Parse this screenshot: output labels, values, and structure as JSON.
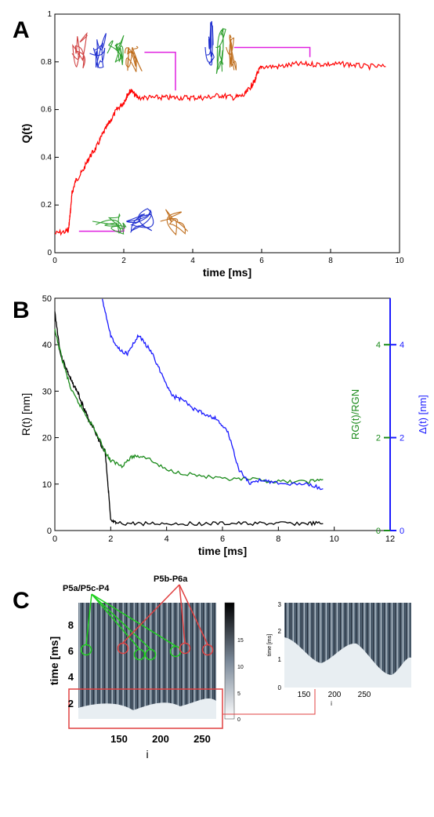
{
  "panels": {
    "a": "A",
    "b": "B",
    "c": "C"
  },
  "chart_data": [
    {
      "type": "line",
      "panel": "A",
      "xlabel": "time [ms]",
      "ylabel": "Q(t)",
      "xlim": [
        0,
        10
      ],
      "ylim": [
        0,
        1
      ],
      "xticks": [
        "0",
        "2",
        "4",
        "6",
        "8",
        "10"
      ],
      "yticks": [
        "0",
        "0.2",
        "0.4",
        "0.6",
        "0.8",
        "1"
      ],
      "color": "#ff0000",
      "series": [
        {
          "x": [
            0,
            0.35,
            0.4,
            0.45,
            0.5,
            0.6,
            0.8,
            1.0,
            1.2,
            1.4,
            1.6,
            1.8,
            2.0,
            2.1,
            2.2,
            2.4,
            2.8,
            3.2,
            3.6,
            4.0,
            4.4,
            4.8,
            5.2,
            5.5,
            5.7,
            5.8,
            5.9,
            6.0,
            6.5,
            7.0,
            7.5,
            8.0,
            8.5,
            9.0,
            9.6
          ],
          "y": [
            0.08,
            0.09,
            0.1,
            0.17,
            0.25,
            0.3,
            0.34,
            0.4,
            0.44,
            0.5,
            0.55,
            0.6,
            0.63,
            0.66,
            0.68,
            0.65,
            0.65,
            0.65,
            0.65,
            0.65,
            0.65,
            0.66,
            0.65,
            0.66,
            0.7,
            0.72,
            0.76,
            0.78,
            0.78,
            0.79,
            0.79,
            0.79,
            0.79,
            0.78,
            0.78
          ]
        }
      ]
    },
    {
      "type": "line",
      "panel": "B",
      "xlabel": "time [ms]",
      "ylabel": "R(t) [nm]",
      "ylabel_right_green": "RG(t)/RGN",
      "ylabel_right_blue": "Δ(t) [nm]",
      "xlim": [
        0,
        12
      ],
      "ylim": [
        0,
        50
      ],
      "xticks": [
        "0",
        "2",
        "4",
        "6",
        "8",
        "10",
        "12"
      ],
      "yticks": [
        "0",
        "10",
        "20",
        "30",
        "40",
        "50"
      ],
      "right_ticks_green": [
        "0",
        "2",
        "4"
      ],
      "right_ticks_blue": [
        "0",
        "2",
        "4"
      ],
      "series": [
        {
          "color": "#000000",
          "x": [
            0,
            0.2,
            0.4,
            0.6,
            0.8,
            1.0,
            1.2,
            1.4,
            1.6,
            1.8,
            1.9,
            2.0,
            2.2,
            3,
            4,
            5,
            6,
            7,
            8,
            9,
            9.6
          ],
          "y": [
            47,
            38,
            35,
            32,
            30,
            27,
            24,
            22,
            19,
            17,
            10,
            2,
            1.5,
            1.5,
            1.5,
            1.5,
            1.5,
            1.5,
            1.5,
            1.5,
            1.5
          ]
        },
        {
          "color": "#1a8a1a",
          "x": [
            0,
            0.3,
            0.6,
            1.0,
            1.4,
            1.8,
            2.0,
            2.4,
            2.8,
            3.2,
            4,
            5,
            6,
            7,
            8,
            9,
            9.6
          ],
          "y": [
            43,
            36,
            30,
            26,
            22,
            17,
            15,
            14,
            16,
            16,
            13,
            12,
            11,
            11,
            10.5,
            10.5,
            11
          ]
        },
        {
          "color": "#1a1aff",
          "x": [
            1.7,
            2.0,
            2.3,
            2.6,
            3.0,
            3.4,
            3.8,
            4.2,
            4.6,
            5.0,
            5.4,
            5.8,
            6.2,
            6.6,
            7.0,
            7.4,
            8,
            9,
            9.6
          ],
          "y": [
            50,
            42,
            39,
            38,
            42,
            39,
            34,
            29,
            28,
            26,
            25,
            24,
            21,
            13,
            10,
            11,
            10,
            10,
            9
          ]
        }
      ]
    },
    {
      "type": "heatmap",
      "panel": "C",
      "xlabel": "i",
      "ylabel": "time [ms]",
      "xticks": [
        "150",
        "200",
        "250"
      ],
      "yticks": [
        "2",
        "4",
        "6",
        "8"
      ],
      "colorbar_ticks": [
        "0",
        "5",
        "10",
        "15"
      ],
      "inset_xlabel": "i",
      "inset_ylabel": "time [ms]",
      "inset_xticks": [
        "150",
        "200",
        "250"
      ],
      "inset_yticks": [
        "0",
        "1",
        "2",
        "3"
      ],
      "annotations": [
        "P5a/P5c-P4",
        "P5b-P6a"
      ]
    }
  ]
}
